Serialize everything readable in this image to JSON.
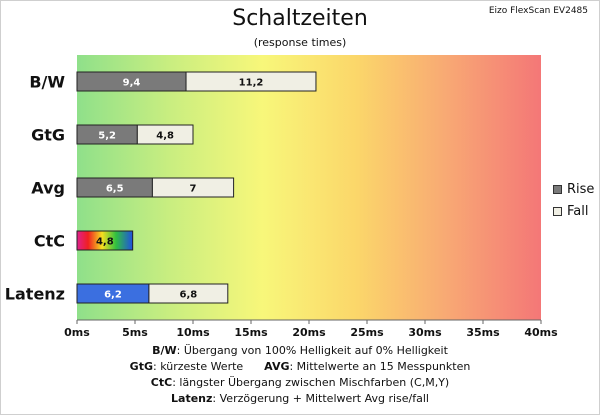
{
  "title": "Schaltzeiten",
  "subtitle": "(response times)",
  "model": "Eizo FlexScan EV2485",
  "legend": [
    {
      "name": "Rise",
      "color": "#7a7a7a"
    },
    {
      "name": "Fall",
      "color": "#f0efe4"
    }
  ],
  "notes": [
    {
      "k1": "B/W",
      "t1": ":  Übergang von 100% Helligkeit auf 0% Helligkeit",
      "k2": "",
      "t2": ""
    },
    {
      "k1": "GtG",
      "t1": ": kürzeste  Werte",
      "k2": "AVG",
      "t2": ": Mittelwerte  an 15 Messpunkten"
    },
    {
      "k1": "CtC",
      "t1": ": längster Übergang  zwischen Mischfarben (C,M,Y)",
      "k2": "",
      "t2": ""
    },
    {
      "k1": "Latenz",
      "t1": ": Verzögerung  + Mittelwert  Avg rise/fall",
      "k2": "",
      "t2": ""
    }
  ],
  "chart_data": {
    "type": "bar",
    "orientation": "horizontal",
    "stacked": true,
    "categories": [
      "B/W",
      "GtG",
      "Avg",
      "CtC",
      "Latenz"
    ],
    "series": [
      {
        "name": "Rise",
        "values": [
          9.4,
          5.2,
          6.5,
          4.8,
          6.2
        ],
        "labels": [
          "9,4",
          "5,2",
          "6,5",
          "4,8",
          "6,2"
        ]
      },
      {
        "name": "Fall",
        "values": [
          11.2,
          4.8,
          7,
          null,
          6.8
        ],
        "labels": [
          "11,2",
          "4,8",
          "7",
          "",
          "6,8"
        ]
      }
    ],
    "special_fills": {
      "CtC": "rainbow",
      "Latenz": "#3b6fe0"
    },
    "xlim": [
      0,
      40
    ],
    "xticks": [
      "0ms",
      "5ms",
      "10ms",
      "15ms",
      "20ms",
      "25ms",
      "30ms",
      "35ms",
      "40ms"
    ],
    "background": "gradient green-yellow-red",
    "legend_position": "right"
  }
}
